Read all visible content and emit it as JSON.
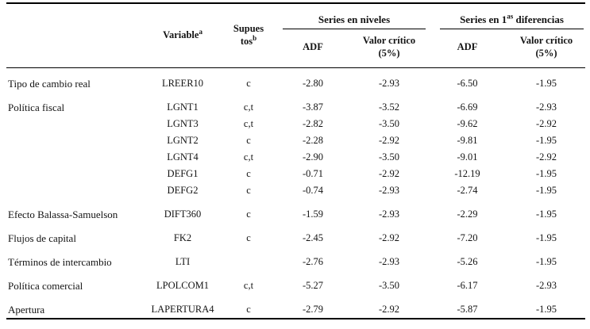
{
  "header": {
    "variable_label": "Variable",
    "variable_sup": "a",
    "supuestos_line1": "Supues",
    "supuestos_line2": "tos",
    "supuestos_sup": "b",
    "group_niveles": "Series en niveles",
    "group_dif_pre": "Series en 1",
    "group_dif_sup": "as",
    "group_dif_post": " diferencias",
    "adf_label": "ADF",
    "critical_line1": "Valor crítico",
    "critical_line2": "(5%)"
  },
  "rows": [
    {
      "category": "Tipo de cambio real",
      "variable": "LREER10",
      "supuestos": "c",
      "adf_niveles": "-2.80",
      "critico_niveles": "-2.93",
      "adf_diferencias": "-6.50",
      "critico_diferencias": "-1.95",
      "group_start": true
    },
    {
      "category": "Política fiscal",
      "variable": "LGNT1",
      "supuestos": "c,t",
      "adf_niveles": "-3.87",
      "critico_niveles": "-3.52",
      "adf_diferencias": "-6.69",
      "critico_diferencias": "-2.93",
      "group_start": true
    },
    {
      "category": "",
      "variable": "LGNT3",
      "supuestos": "c,t",
      "adf_niveles": "-2.82",
      "critico_niveles": "-3.50",
      "adf_diferencias": "-9.62",
      "critico_diferencias": "-2.92",
      "group_start": false
    },
    {
      "category": "",
      "variable": "LGNT2",
      "supuestos": "c",
      "adf_niveles": "-2.28",
      "critico_niveles": "-2.92",
      "adf_diferencias": "-9.81",
      "critico_diferencias": "-1.95",
      "group_start": false
    },
    {
      "category": "",
      "variable": "LGNT4",
      "supuestos": "c,t",
      "adf_niveles": "-2.90",
      "critico_niveles": "-3.50",
      "adf_diferencias": "-9.01",
      "critico_diferencias": "-2.92",
      "group_start": false
    },
    {
      "category": "",
      "variable": "DEFG1",
      "supuestos": "c",
      "adf_niveles": "-0.71",
      "critico_niveles": "-2.92",
      "adf_diferencias": "-12.19",
      "critico_diferencias": "-1.95",
      "group_start": false
    },
    {
      "category": "",
      "variable": "DEFG2",
      "supuestos": "c",
      "adf_niveles": "-0.74",
      "critico_niveles": "-2.93",
      "adf_diferencias": "-2.74",
      "critico_diferencias": "-1.95",
      "group_start": false
    },
    {
      "category": "Efecto Balassa-Samuelson",
      "variable": "DIFT360",
      "supuestos": "c",
      "adf_niveles": "-1.59",
      "critico_niveles": "-2.93",
      "adf_diferencias": "-2.29",
      "critico_diferencias": "-1.95",
      "group_start": true
    },
    {
      "category": "Flujos de capital",
      "variable": "FK2",
      "supuestos": "c",
      "adf_niveles": "-2.45",
      "critico_niveles": "-2.92",
      "adf_diferencias": "-7.20",
      "critico_diferencias": "-1.95",
      "group_start": true
    },
    {
      "category": "Términos de intercambio",
      "variable": "LTI",
      "supuestos": "",
      "adf_niveles": "-2.76",
      "critico_niveles": "-2.93",
      "adf_diferencias": "-5.26",
      "critico_diferencias": "-1.95",
      "group_start": true
    },
    {
      "category": "Política comercial",
      "variable": "LPOLCOM1",
      "supuestos": "c,t",
      "adf_niveles": "-5.27",
      "critico_niveles": "-3.50",
      "adf_diferencias": "-6.17",
      "critico_diferencias": "-2.93",
      "group_start": true
    },
    {
      "category": "Apertura",
      "variable": "LAPERTURA4",
      "supuestos": "c",
      "adf_niveles": "-2.79",
      "critico_niveles": "-2.92",
      "adf_diferencias": "-5.87",
      "critico_diferencias": "-1.95",
      "group_start": true
    }
  ],
  "colors": {
    "background": "#ffffff",
    "text": "#141414",
    "rule": "#000000"
  }
}
